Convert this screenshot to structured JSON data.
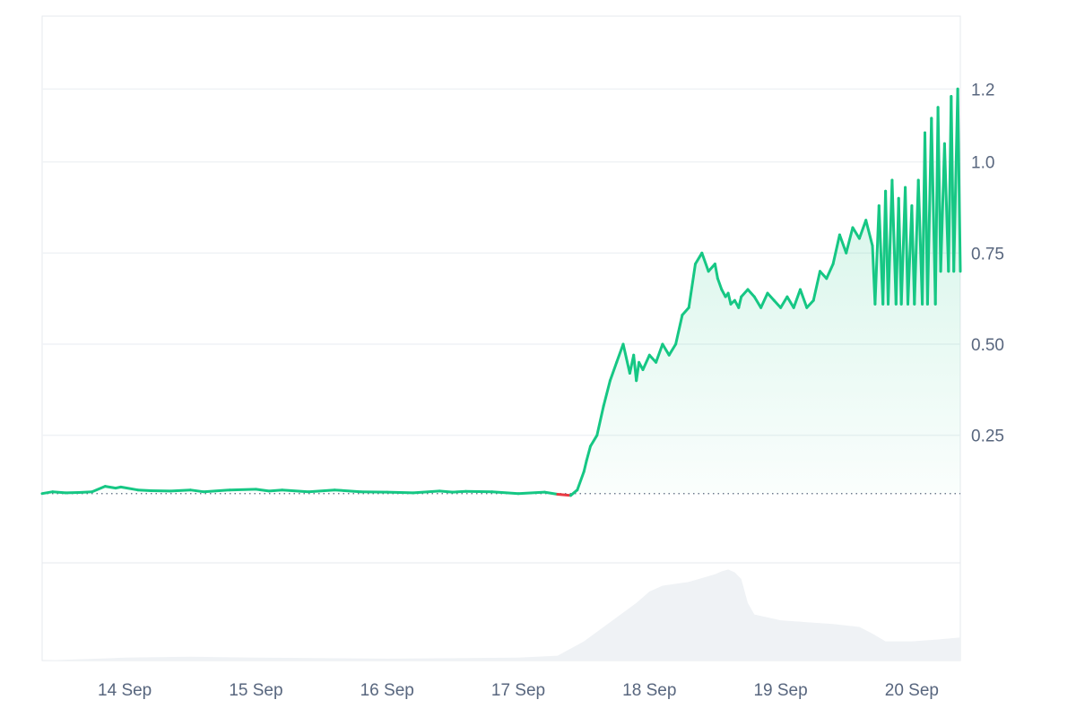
{
  "chart_data": {
    "type": "area",
    "title": "",
    "xlabel": "",
    "ylabel": "",
    "baseline": 0.09,
    "ylim": [
      -0.1,
      1.4
    ],
    "y_ticks": [
      {
        "value": 0.25,
        "label": "0.25"
      },
      {
        "value": 0.5,
        "label": "0.50"
      },
      {
        "value": 0.75,
        "label": "0.75"
      },
      {
        "value": 1.0,
        "label": "1.0"
      },
      {
        "value": 1.2,
        "label": "1.2"
      }
    ],
    "x_range": [
      13.37,
      20.37
    ],
    "x_ticks": [
      {
        "value": 14,
        "label": "14 Sep"
      },
      {
        "value": 15,
        "label": "15 Sep"
      },
      {
        "value": 16,
        "label": "16 Sep"
      },
      {
        "value": 17,
        "label": "17 Sep"
      },
      {
        "value": 18,
        "label": "18 Sep"
      },
      {
        "value": 19,
        "label": "19 Sep"
      },
      {
        "value": 20,
        "label": "20 Sep"
      }
    ],
    "colors": {
      "up": "#16c784",
      "down": "#ea3943",
      "grid": "#eff2f5",
      "volume": "#eff2f5",
      "baseline": "#58667e",
      "text": "#58667e"
    },
    "series": [
      {
        "x": [
          13.37,
          13.45,
          13.55,
          13.65,
          13.75,
          13.85,
          13.93,
          13.97,
          14.1,
          14.2,
          14.35,
          14.5,
          14.6,
          14.8,
          15.0,
          15.1,
          15.2,
          15.4,
          15.6,
          15.8,
          16.0,
          16.2,
          16.4,
          16.5,
          16.6,
          16.8,
          17.0,
          17.2,
          17.3,
          17.4,
          17.45,
          17.5,
          17.52,
          17.55,
          17.6,
          17.65,
          17.7,
          17.75,
          17.8,
          17.85,
          17.88,
          17.9,
          17.92,
          17.95,
          18.0,
          18.05,
          18.1,
          18.15,
          18.2,
          18.25,
          18.3,
          18.35,
          18.4,
          18.45,
          18.5,
          18.52,
          18.55,
          18.58,
          18.6,
          18.62,
          18.65,
          18.68,
          18.7,
          18.75,
          18.8,
          18.85,
          18.9,
          18.95,
          19.0,
          19.05,
          19.1,
          19.15,
          19.2,
          19.25,
          19.3,
          19.35,
          19.4,
          19.45,
          19.5,
          19.55,
          19.6,
          19.65,
          19.7,
          19.72,
          19.75,
          19.78,
          19.8,
          19.82,
          19.85,
          19.88,
          19.9,
          19.92,
          19.95,
          19.97,
          20.0,
          20.02,
          20.05,
          20.08,
          20.1,
          20.12,
          20.15,
          20.18,
          20.2,
          20.22,
          20.25,
          20.28,
          20.3,
          20.32,
          20.35,
          20.37
        ],
        "y": [
          0.09,
          0.095,
          0.092,
          0.093,
          0.095,
          0.11,
          0.105,
          0.108,
          0.1,
          0.098,
          0.097,
          0.1,
          0.095,
          0.1,
          0.102,
          0.097,
          0.1,
          0.095,
          0.1,
          0.095,
          0.094,
          0.092,
          0.097,
          0.094,
          0.096,
          0.095,
          0.09,
          0.094,
          0.088,
          0.085,
          0.1,
          0.15,
          0.18,
          0.22,
          0.25,
          0.33,
          0.4,
          0.45,
          0.5,
          0.42,
          0.47,
          0.4,
          0.45,
          0.43,
          0.47,
          0.45,
          0.5,
          0.47,
          0.5,
          0.58,
          0.6,
          0.72,
          0.75,
          0.7,
          0.72,
          0.68,
          0.65,
          0.63,
          0.64,
          0.61,
          0.62,
          0.6,
          0.63,
          0.65,
          0.63,
          0.6,
          0.64,
          0.62,
          0.6,
          0.63,
          0.6,
          0.65,
          0.6,
          0.62,
          0.7,
          0.68,
          0.72,
          0.8,
          0.75,
          0.82,
          0.79,
          0.84,
          0.77,
          0.61,
          0.88,
          0.61,
          0.92,
          0.61,
          0.95,
          0.61,
          0.9,
          0.61,
          0.93,
          0.61,
          0.88,
          0.61,
          0.95,
          0.61,
          1.08,
          0.61,
          1.12,
          0.61,
          1.15,
          0.7,
          1.05,
          0.7,
          1.18,
          0.7,
          1.2,
          0.7
        ]
      }
    ],
    "volume": {
      "x": [
        13.37,
        13.8,
        14.0,
        14.5,
        15.0,
        16.0,
        17.0,
        17.3,
        17.5,
        17.7,
        17.9,
        18.0,
        18.1,
        18.2,
        18.3,
        18.4,
        18.5,
        18.55,
        18.6,
        18.65,
        18.7,
        18.75,
        18.8,
        18.9,
        19.0,
        19.2,
        19.4,
        19.6,
        19.7,
        19.8,
        20.0,
        20.2,
        20.37
      ],
      "y": [
        0.0,
        0.02,
        0.03,
        0.04,
        0.03,
        0.02,
        0.03,
        0.05,
        0.2,
        0.4,
        0.6,
        0.72,
        0.78,
        0.8,
        0.82,
        0.86,
        0.9,
        0.93,
        0.95,
        0.92,
        0.85,
        0.6,
        0.48,
        0.45,
        0.42,
        0.4,
        0.38,
        0.35,
        0.28,
        0.2,
        0.2,
        0.22,
        0.24
      ]
    }
  }
}
